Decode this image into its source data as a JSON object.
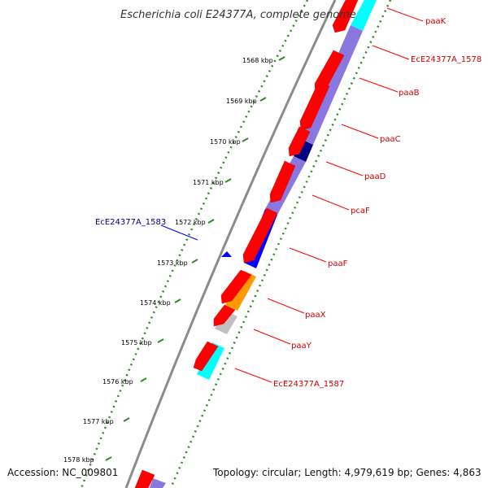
{
  "title": "Escherichia coli E24377A, complete genome",
  "footer": {
    "accession": "Accession: NC_009801",
    "topology": "Topology: circular; Length: 4,979,619 bp; Genes: 4,863"
  },
  "colors": {
    "backbone": "#8c8c8c",
    "ticks": "#2e8b22",
    "cds": "#ff0000",
    "label_red": "#cc0000",
    "label_blue": "#00008b",
    "cog_light": "#8a78e0",
    "cog_dark": "#000080",
    "cog_blue": "#0000ff",
    "cog_cyan": "#00ffff",
    "cog_orange": "#ff9900",
    "cog_gray": "#c0c0c0"
  },
  "ticks": [
    "1568 kbp",
    "1569 kbp",
    "1570 kbp",
    "1571 kbp",
    "1572 kbp",
    "1573 kbp",
    "1574 kbp",
    "1575 kbp",
    "1576 kbp",
    "1577 kbp",
    "1578 kbp"
  ],
  "genes_right": [
    {
      "label": "paaK",
      "color": "#cc0000"
    },
    {
      "label": "EcE24377A_1578",
      "color": "#cc0000"
    },
    {
      "label": "paaB",
      "color": "#cc0000"
    },
    {
      "label": "paaC",
      "color": "#cc0000"
    },
    {
      "label": "paaD",
      "color": "#cc0000"
    },
    {
      "label": "pcaF",
      "color": "#cc0000"
    },
    {
      "label": "paaF",
      "color": "#cc0000"
    },
    {
      "label": "paaX",
      "color": "#cc0000"
    },
    {
      "label": "paaY",
      "color": "#cc0000"
    },
    {
      "label": "EcE24377A_1587",
      "color": "#cc0000"
    }
  ],
  "genes_left": [
    {
      "label": "EcE24377A_1583",
      "color": "#00008b"
    }
  ]
}
